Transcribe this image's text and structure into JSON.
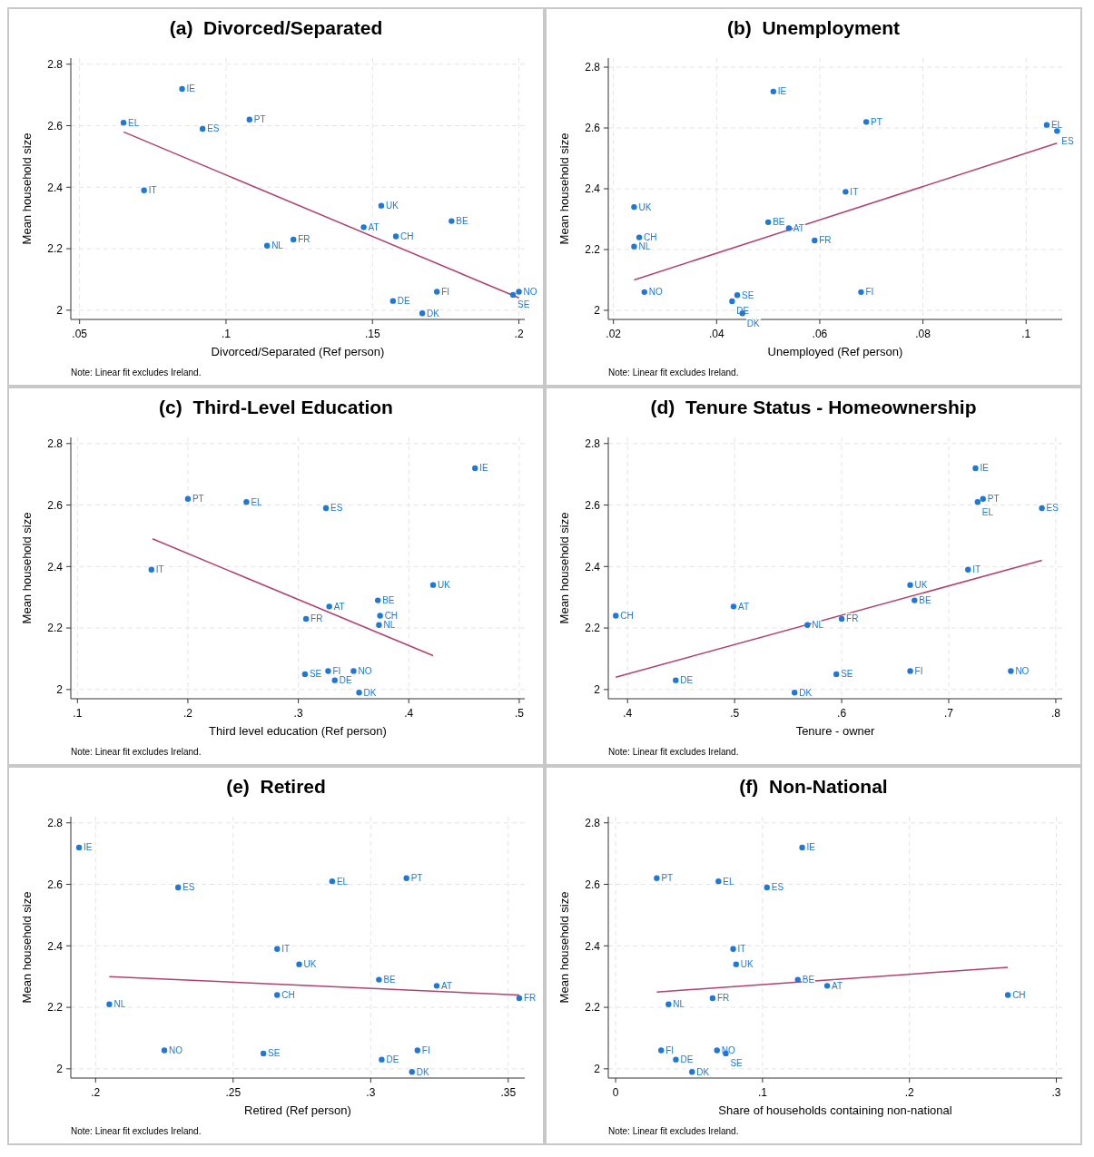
{
  "chart_data": [
    {
      "type": "scatter",
      "title": "(a)  Divorced/Separated",
      "xlabel": "Divorced/Separated (Ref person)",
      "ylabel": "Mean household size",
      "xlim": [
        0.047,
        0.202
      ],
      "ylim": [
        1.97,
        2.82
      ],
      "xticks": [
        {
          "value": 0.05,
          "label": ".05"
        },
        {
          "value": 0.1,
          "label": ".1"
        },
        {
          "value": 0.15,
          "label": ".15"
        },
        {
          "value": 0.2,
          "label": ".2"
        }
      ],
      "yticks": [
        2,
        2.2,
        2.4,
        2.6,
        2.8
      ],
      "grid": true,
      "series": [
        {
          "type": "scatter",
          "marker": "circle",
          "color": "#1f78d8",
          "x": [
            0.085,
            0.108,
            0.065,
            0.092,
            0.072,
            0.153,
            0.177,
            0.147,
            0.158,
            0.123,
            0.114,
            0.172,
            0.2,
            0.198,
            0.157,
            0.167
          ],
          "values": [
            2.72,
            2.62,
            2.61,
            2.59,
            2.39,
            2.34,
            2.29,
            2.27,
            2.24,
            2.23,
            2.21,
            2.06,
            2.06,
            2.05,
            2.03,
            1.99
          ]
        },
        {
          "type": "line",
          "color": "#b0426f",
          "line_style": "solid",
          "x": [
            0.065,
            0.2
          ],
          "values": [
            2.58,
            2.04
          ]
        }
      ],
      "annotations": [
        {
          "text": "IE",
          "x": 0.085,
          "y": 2.72
        },
        {
          "text": "PT",
          "x": 0.108,
          "y": 2.62
        },
        {
          "text": "EL",
          "x": 0.065,
          "y": 2.61
        },
        {
          "text": "ES",
          "x": 0.092,
          "y": 2.59
        },
        {
          "text": "IT",
          "x": 0.072,
          "y": 2.39
        },
        {
          "text": "UK",
          "x": 0.153,
          "y": 2.34
        },
        {
          "text": "BE",
          "x": 0.177,
          "y": 2.29
        },
        {
          "text": "AT",
          "x": 0.147,
          "y": 2.27
        },
        {
          "text": "CH",
          "x": 0.158,
          "y": 2.24
        },
        {
          "text": "FR",
          "x": 0.123,
          "y": 2.23
        },
        {
          "text": "NL",
          "x": 0.114,
          "y": 2.21
        },
        {
          "text": "FI",
          "x": 0.172,
          "y": 2.06
        },
        {
          "text": "NO",
          "x": 0.2,
          "y": 2.06
        },
        {
          "text": "SE",
          "x": 0.198,
          "y": 2.05
        },
        {
          "text": "DE",
          "x": 0.157,
          "y": 2.03
        },
        {
          "text": "DK",
          "x": 0.167,
          "y": 1.99
        },
        "Note: Linear fit excludes Ireland."
      ]
    },
    {
      "type": "scatter",
      "title": "(b)  Unemployment",
      "xlabel": "Unemployed (Ref person)",
      "ylabel": "Mean household size",
      "xlim": [
        0.019,
        0.107
      ],
      "ylim": [
        1.97,
        2.83
      ],
      "xticks": [
        {
          "value": 0.02,
          "label": ".02"
        },
        {
          "value": 0.04,
          "label": ".04"
        },
        {
          "value": 0.06,
          "label": ".06"
        },
        {
          "value": 0.08,
          "label": ".08"
        },
        {
          "value": 0.1,
          "label": ".1"
        }
      ],
      "yticks": [
        2,
        2.2,
        2.4,
        2.6,
        2.8
      ],
      "grid": true,
      "series": [
        {
          "type": "scatter",
          "marker": "circle",
          "color": "#1f78d8",
          "x": [
            0.051,
            0.069,
            0.104,
            0.106,
            0.065,
            0.024,
            0.05,
            0.054,
            0.025,
            0.059,
            0.024,
            0.068,
            0.026,
            0.044,
            0.043,
            0.045
          ],
          "values": [
            2.72,
            2.62,
            2.61,
            2.59,
            2.39,
            2.34,
            2.29,
            2.27,
            2.24,
            2.23,
            2.21,
            2.06,
            2.06,
            2.05,
            2.03,
            1.99
          ]
        },
        {
          "type": "line",
          "color": "#b0426f",
          "line_style": "solid",
          "x": [
            0.024,
            0.106
          ],
          "values": [
            2.1,
            2.55
          ]
        }
      ],
      "annotations": [
        {
          "text": "IE",
          "x": 0.051,
          "y": 2.72
        },
        {
          "text": "PT",
          "x": 0.069,
          "y": 2.62
        },
        {
          "text": "EL",
          "x": 0.104,
          "y": 2.61
        },
        {
          "text": "ES",
          "x": 0.106,
          "y": 2.59
        },
        {
          "text": "IT",
          "x": 0.065,
          "y": 2.39
        },
        {
          "text": "UK",
          "x": 0.024,
          "y": 2.34
        },
        {
          "text": "BE",
          "x": 0.05,
          "y": 2.29
        },
        {
          "text": "AT",
          "x": 0.054,
          "y": 2.27
        },
        {
          "text": "CH",
          "x": 0.025,
          "y": 2.24
        },
        {
          "text": "FR",
          "x": 0.059,
          "y": 2.23
        },
        {
          "text": "NL",
          "x": 0.024,
          "y": 2.21
        },
        {
          "text": "FI",
          "x": 0.068,
          "y": 2.06
        },
        {
          "text": "NO",
          "x": 0.026,
          "y": 2.06
        },
        {
          "text": "SE",
          "x": 0.044,
          "y": 2.05
        },
        {
          "text": "DE",
          "x": 0.043,
          "y": 2.03
        },
        {
          "text": "DK",
          "x": 0.045,
          "y": 1.99
        },
        "Note: Linear fit excludes Ireland."
      ]
    },
    {
      "type": "scatter",
      "title": "(c)  Third-Level Education",
      "xlabel": "Third level education (Ref person)",
      "ylabel": "Mean household size",
      "xlim": [
        0.094,
        0.505
      ],
      "ylim": [
        1.97,
        2.82
      ],
      "xticks": [
        {
          "value": 0.1,
          "label": ".1"
        },
        {
          "value": 0.2,
          "label": ".2"
        },
        {
          "value": 0.3,
          "label": ".3"
        },
        {
          "value": 0.4,
          "label": ".4"
        },
        {
          "value": 0.5,
          "label": ".5"
        }
      ],
      "yticks": [
        2,
        2.2,
        2.4,
        2.6,
        2.8
      ],
      "grid": true,
      "series": [
        {
          "type": "scatter",
          "marker": "circle",
          "color": "#1f78d8",
          "x": [
            0.46,
            0.2,
            0.253,
            0.325,
            0.167,
            0.422,
            0.372,
            0.328,
            0.374,
            0.307,
            0.373,
            0.327,
            0.35,
            0.306,
            0.333,
            0.355
          ],
          "values": [
            2.72,
            2.62,
            2.61,
            2.59,
            2.39,
            2.34,
            2.29,
            2.27,
            2.24,
            2.23,
            2.21,
            2.06,
            2.06,
            2.05,
            2.03,
            1.99
          ]
        },
        {
          "type": "line",
          "color": "#b0426f",
          "line_style": "solid",
          "x": [
            0.168,
            0.422
          ],
          "values": [
            2.49,
            2.11
          ]
        }
      ],
      "annotations": [
        {
          "text": "IE",
          "x": 0.46,
          "y": 2.72
        },
        {
          "text": "PT",
          "x": 0.2,
          "y": 2.62
        },
        {
          "text": "EL",
          "x": 0.253,
          "y": 2.61
        },
        {
          "text": "ES",
          "x": 0.325,
          "y": 2.59
        },
        {
          "text": "IT",
          "x": 0.167,
          "y": 2.39
        },
        {
          "text": "UK",
          "x": 0.422,
          "y": 2.34
        },
        {
          "text": "BE",
          "x": 0.372,
          "y": 2.29
        },
        {
          "text": "AT",
          "x": 0.328,
          "y": 2.27
        },
        {
          "text": "CH",
          "x": 0.374,
          "y": 2.24
        },
        {
          "text": "FR",
          "x": 0.307,
          "y": 2.23
        },
        {
          "text": "NL",
          "x": 0.373,
          "y": 2.21
        },
        {
          "text": "FI",
          "x": 0.327,
          "y": 2.06
        },
        {
          "text": "NO",
          "x": 0.35,
          "y": 2.06
        },
        {
          "text": "SE",
          "x": 0.306,
          "y": 2.05
        },
        {
          "text": "DE",
          "x": 0.333,
          "y": 2.03
        },
        {
          "text": "DK",
          "x": 0.355,
          "y": 1.99
        },
        "Note: Linear fit excludes Ireland."
      ]
    },
    {
      "type": "scatter",
      "title": "(d)  Tenure Status - Homeownership",
      "xlabel": "Tenure - owner",
      "ylabel": "Mean household size",
      "xlim": [
        0.382,
        0.806
      ],
      "ylim": [
        1.97,
        2.82
      ],
      "xticks": [
        {
          "value": 0.4,
          "label": ".4"
        },
        {
          "value": 0.5,
          "label": ".5"
        },
        {
          "value": 0.6,
          "label": ".6"
        },
        {
          "value": 0.7,
          "label": ".7"
        },
        {
          "value": 0.8,
          "label": ".8"
        }
      ],
      "yticks": [
        2,
        2.2,
        2.4,
        2.6,
        2.8
      ],
      "grid": true,
      "series": [
        {
          "type": "scatter",
          "marker": "circle",
          "color": "#1f78d8",
          "x": [
            0.725,
            0.732,
            0.727,
            0.787,
            0.718,
            0.664,
            0.668,
            0.499,
            0.389,
            0.6,
            0.568,
            0.664,
            0.758,
            0.595,
            0.445,
            0.556
          ],
          "values": [
            2.72,
            2.62,
            2.61,
            2.59,
            2.39,
            2.34,
            2.29,
            2.27,
            2.24,
            2.23,
            2.21,
            2.06,
            2.06,
            2.05,
            2.03,
            1.99
          ]
        },
        {
          "type": "line",
          "color": "#b0426f",
          "line_style": "solid",
          "x": [
            0.389,
            0.787
          ],
          "values": [
            2.04,
            2.42
          ]
        }
      ],
      "annotations": [
        {
          "text": "IE",
          "x": 0.725,
          "y": 2.72
        },
        {
          "text": "PT",
          "x": 0.732,
          "y": 2.62
        },
        {
          "text": "EL",
          "x": 0.727,
          "y": 2.61
        },
        {
          "text": "ES",
          "x": 0.787,
          "y": 2.59
        },
        {
          "text": "IT",
          "x": 0.718,
          "y": 2.39
        },
        {
          "text": "UK",
          "x": 0.664,
          "y": 2.34
        },
        {
          "text": "BE",
          "x": 0.668,
          "y": 2.29
        },
        {
          "text": "AT",
          "x": 0.499,
          "y": 2.27
        },
        {
          "text": "CH",
          "x": 0.389,
          "y": 2.24
        },
        {
          "text": "FR",
          "x": 0.6,
          "y": 2.23
        },
        {
          "text": "NL",
          "x": 0.568,
          "y": 2.21
        },
        {
          "text": "FI",
          "x": 0.664,
          "y": 2.06
        },
        {
          "text": "NO",
          "x": 0.758,
          "y": 2.06
        },
        {
          "text": "SE",
          "x": 0.595,
          "y": 2.05
        },
        {
          "text": "DE",
          "x": 0.445,
          "y": 2.03
        },
        {
          "text": "DK",
          "x": 0.556,
          "y": 1.99
        },
        "Note: Linear fit excludes Ireland."
      ]
    },
    {
      "type": "scatter",
      "title": "(e)  Retired",
      "xlabel": "Retired (Ref person)",
      "ylabel": "Mean household size",
      "xlim": [
        0.191,
        0.356
      ],
      "ylim": [
        1.97,
        2.82
      ],
      "xticks": [
        {
          "value": 0.2,
          "label": ".2"
        },
        {
          "value": 0.25,
          "label": ".25"
        },
        {
          "value": 0.3,
          "label": ".3"
        },
        {
          "value": 0.35,
          "label": ".35"
        }
      ],
      "yticks": [
        2,
        2.2,
        2.4,
        2.6,
        2.8
      ],
      "grid": true,
      "series": [
        {
          "type": "scatter",
          "marker": "circle",
          "color": "#1f78d8",
          "x": [
            0.194,
            0.313,
            0.286,
            0.23,
            0.266,
            0.274,
            0.303,
            0.324,
            0.266,
            0.354,
            0.205,
            0.317,
            0.225,
            0.261,
            0.304,
            0.315
          ],
          "values": [
            2.72,
            2.62,
            2.61,
            2.59,
            2.39,
            2.34,
            2.29,
            2.27,
            2.24,
            2.23,
            2.21,
            2.06,
            2.06,
            2.05,
            2.03,
            1.99
          ]
        },
        {
          "type": "line",
          "color": "#b0426f",
          "line_style": "solid",
          "x": [
            0.205,
            0.354
          ],
          "values": [
            2.3,
            2.24
          ]
        }
      ],
      "annotations": [
        {
          "text": "IE",
          "x": 0.194,
          "y": 2.72
        },
        {
          "text": "PT",
          "x": 0.313,
          "y": 2.62
        },
        {
          "text": "EL",
          "x": 0.286,
          "y": 2.61
        },
        {
          "text": "ES",
          "x": 0.23,
          "y": 2.59
        },
        {
          "text": "IT",
          "x": 0.266,
          "y": 2.39
        },
        {
          "text": "UK",
          "x": 0.274,
          "y": 2.34
        },
        {
          "text": "BE",
          "x": 0.303,
          "y": 2.29
        },
        {
          "text": "AT",
          "x": 0.324,
          "y": 2.27
        },
        {
          "text": "CH",
          "x": 0.266,
          "y": 2.24
        },
        {
          "text": "FR",
          "x": 0.354,
          "y": 2.23
        },
        {
          "text": "NL",
          "x": 0.205,
          "y": 2.21
        },
        {
          "text": "FI",
          "x": 0.317,
          "y": 2.06
        },
        {
          "text": "NO",
          "x": 0.225,
          "y": 2.06
        },
        {
          "text": "SE",
          "x": 0.261,
          "y": 2.05
        },
        {
          "text": "DE",
          "x": 0.304,
          "y": 2.03
        },
        {
          "text": "DK",
          "x": 0.315,
          "y": 1.99
        },
        "Note: Linear fit excludes Ireland."
      ]
    },
    {
      "type": "scatter",
      "title": "(f)  Non-National",
      "xlabel": "Share of households containing non-national",
      "ylabel": "Mean household size",
      "xlim": [
        -0.005,
        0.304
      ],
      "ylim": [
        1.97,
        2.82
      ],
      "xticks": [
        0,
        {
          "value": 0.1,
          "label": ".1"
        },
        {
          "value": 0.2,
          "label": ".2"
        },
        {
          "value": 0.3,
          "label": ".3"
        }
      ],
      "yticks": [
        2,
        2.2,
        2.4,
        2.6,
        2.8
      ],
      "grid": true,
      "series": [
        {
          "type": "scatter",
          "marker": "circle",
          "color": "#1f78d8",
          "x": [
            0.127,
            0.028,
            0.07,
            0.103,
            0.08,
            0.082,
            0.124,
            0.144,
            0.267,
            0.066,
            0.036,
            0.031,
            0.069,
            0.075,
            0.041,
            0.052
          ],
          "values": [
            2.72,
            2.62,
            2.61,
            2.59,
            2.39,
            2.34,
            2.29,
            2.27,
            2.24,
            2.23,
            2.21,
            2.06,
            2.06,
            2.05,
            2.03,
            1.99
          ]
        },
        {
          "type": "line",
          "color": "#b0426f",
          "line_style": "solid",
          "x": [
            0.028,
            0.267
          ],
          "values": [
            2.25,
            2.33
          ]
        }
      ],
      "annotations": [
        {
          "text": "IE",
          "x": 0.127,
          "y": 2.72
        },
        {
          "text": "PT",
          "x": 0.028,
          "y": 2.62
        },
        {
          "text": "EL",
          "x": 0.07,
          "y": 2.61
        },
        {
          "text": "ES",
          "x": 0.103,
          "y": 2.59
        },
        {
          "text": "IT",
          "x": 0.08,
          "y": 2.39
        },
        {
          "text": "UK",
          "x": 0.082,
          "y": 2.34
        },
        {
          "text": "BE",
          "x": 0.124,
          "y": 2.29
        },
        {
          "text": "AT",
          "x": 0.144,
          "y": 2.27
        },
        {
          "text": "CH",
          "x": 0.267,
          "y": 2.24
        },
        {
          "text": "FR",
          "x": 0.066,
          "y": 2.23
        },
        {
          "text": "NL",
          "x": 0.036,
          "y": 2.21
        },
        {
          "text": "FI",
          "x": 0.031,
          "y": 2.06
        },
        {
          "text": "NO",
          "x": 0.069,
          "y": 2.06
        },
        {
          "text": "SE",
          "x": 0.075,
          "y": 2.05
        },
        {
          "text": "DE",
          "x": 0.041,
          "y": 2.03
        },
        {
          "text": "DK",
          "x": 0.052,
          "y": 1.99
        },
        "Note: Linear fit excludes Ireland."
      ]
    }
  ]
}
